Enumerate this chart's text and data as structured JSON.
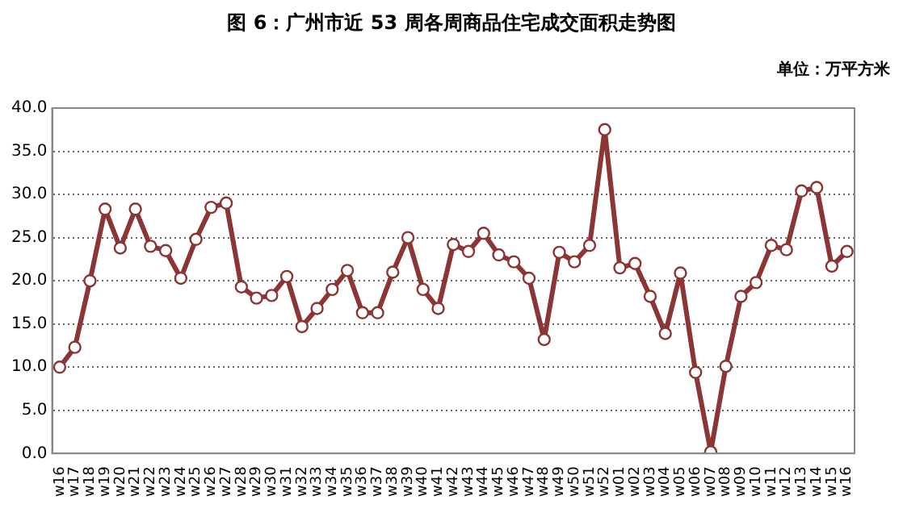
{
  "chart_data": {
    "type": "line",
    "title": "图 6：广州市近 53 周各周商品住宅成交面积走势图",
    "annotations": [
      "单位：万平方米"
    ],
    "categories": [
      "w16",
      "w17",
      "w18",
      "w19",
      "w20",
      "w21",
      "w22",
      "w23",
      "w24",
      "w25",
      "w26",
      "w27",
      "w28",
      "w29",
      "w30",
      "w31",
      "w32",
      "w33",
      "w34",
      "w35",
      "w36",
      "w37",
      "w38",
      "w39",
      "w40",
      "w41",
      "w42",
      "w43",
      "w44",
      "w45",
      "w46",
      "w47",
      "w48",
      "w49",
      "w50",
      "w51",
      "w52",
      "w01",
      "w02",
      "w03",
      "w04",
      "w05",
      "w06",
      "w07",
      "w08",
      "w09",
      "w10",
      "w11",
      "w12",
      "w13",
      "w14",
      "w15",
      "w16"
    ],
    "series": [
      {
        "color": "#8b3535",
        "values": [
          10.0,
          12.3,
          20.0,
          28.3,
          23.8,
          28.3,
          24.0,
          23.5,
          20.3,
          24.8,
          28.5,
          29.0,
          19.3,
          18.0,
          18.3,
          20.5,
          14.7,
          16.8,
          19.0,
          21.2,
          16.3,
          16.3,
          21.0,
          25.0,
          19.0,
          16.8,
          24.2,
          23.4,
          25.5,
          23.0,
          22.2,
          20.3,
          13.2,
          23.3,
          22.2,
          24.1,
          37.5,
          21.5,
          22.0,
          18.2,
          13.9,
          20.9,
          9.4,
          0.2,
          10.1,
          18.2,
          19.8,
          24.1,
          23.6,
          30.4,
          30.8,
          21.7,
          23.4
        ]
      }
    ],
    "ylim": [
      0,
      40
    ],
    "yticks": [
      {
        "value": 0,
        "label": "0.0"
      },
      {
        "value": 5,
        "label": "5.0"
      },
      {
        "value": 10,
        "label": "10.0"
      },
      {
        "value": 15,
        "label": "15.0"
      },
      {
        "value": 20,
        "label": "20.0"
      },
      {
        "value": 25,
        "label": "25.0"
      },
      {
        "value": 30,
        "label": "30.0"
      },
      {
        "value": 35,
        "label": "35.0"
      },
      {
        "value": 40,
        "label": "40.0"
      }
    ],
    "grid": "y",
    "legend": false,
    "marker": "circle",
    "line_style": "solid"
  }
}
